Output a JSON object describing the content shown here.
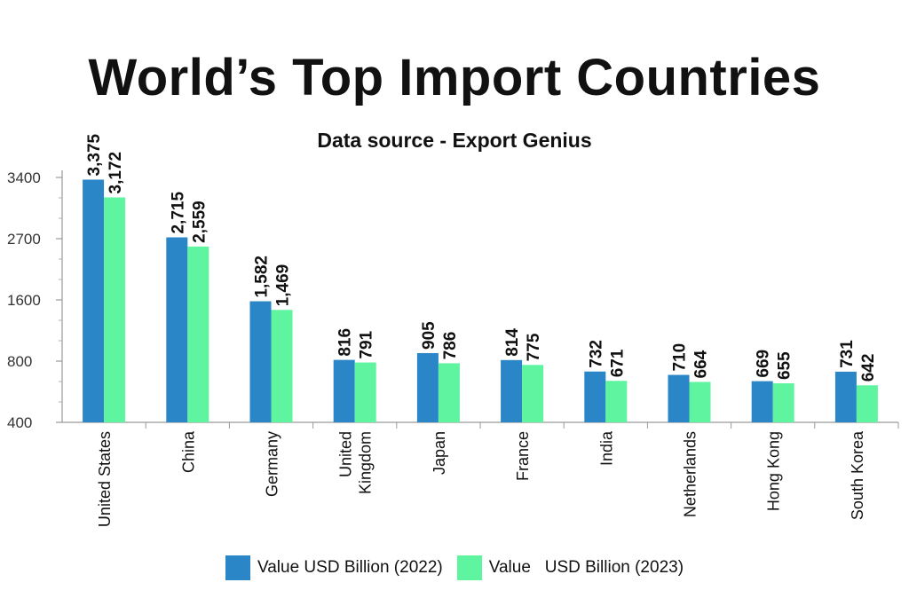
{
  "chart_data": {
    "type": "bar",
    "title": "World’s Top Import Countries",
    "subtitle": "Data source - Export Genius",
    "categories": [
      "United States",
      "China",
      "Germany",
      "United Kingdom",
      "Japan",
      "France",
      "India",
      "Netherlands",
      "Hong Kong",
      "South Korea"
    ],
    "category_lines": [
      [
        "United States"
      ],
      [
        "China"
      ],
      [
        "Germany"
      ],
      [
        "United",
        "Kingdom"
      ],
      [
        "Japan"
      ],
      [
        "France"
      ],
      [
        "India"
      ],
      [
        "Netherlands"
      ],
      [
        "Hong Kong"
      ],
      [
        "South Korea"
      ]
    ],
    "y_ticks": [
      400,
      800,
      1600,
      2700,
      3400
    ],
    "y_tick_labels": [
      "400",
      "800",
      "1600",
      "2700",
      "3400"
    ],
    "xlabel": "",
    "ylabel": "",
    "grid": false,
    "legend_position": "bottom",
    "series": [
      {
        "name": "Value USD Billion (2022)",
        "color": "#2a86c6",
        "values": [
          3375,
          2715,
          1582,
          816,
          905,
          814,
          732,
          710,
          669,
          731
        ],
        "value_labels": [
          "3,375",
          "2,715",
          "1,582",
          "816",
          "905",
          "814",
          "732",
          "710",
          "669",
          "731"
        ]
      },
      {
        "name": "Value   USD Billion (2023)",
        "color": "#5ef4a0",
        "values": [
          3172,
          2559,
          1469,
          791,
          786,
          775,
          671,
          664,
          655,
          642
        ],
        "value_labels": [
          "3,172",
          "2,559",
          "1,469",
          "791",
          "786",
          "775",
          "671",
          "664",
          "655",
          "642"
        ]
      }
    ]
  }
}
